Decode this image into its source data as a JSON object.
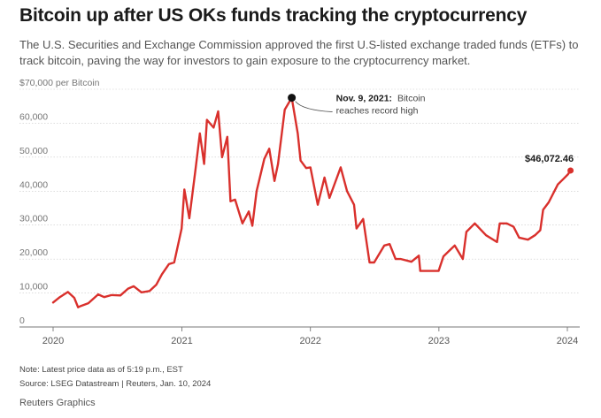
{
  "header": {
    "title": "Bitcoin up after US OKs funds tracking the cryptocurrency",
    "subtitle": "The U.S. Securities and Exchange Commission approved the first U.S-listed exchange traded funds (ETFs) to track bitcoin, paving the way for investors to gain exposure to the cryptocurrency market."
  },
  "footer": {
    "note": "Note: Latest price data as of 5:19 p.m., EST",
    "source": "Source: LSEG Datastream | Reuters, Jan. 10, 2024",
    "credit": "Reuters Graphics"
  },
  "chart_data": {
    "type": "line",
    "title": "Bitcoin up after US OKs funds tracking the cryptocurrency",
    "ylabel": "$70,000 per Bitcoin",
    "xlabel": "",
    "ylim": [
      0,
      70000
    ],
    "xlim": [
      "2020-01-01",
      "2024-01-10"
    ],
    "yticks": [
      0,
      10000,
      20000,
      30000,
      40000,
      50000,
      60000,
      70000
    ],
    "ytick_labels": [
      "0",
      "10,000",
      "20,000",
      "30,000",
      "40,000",
      "50,000",
      "60,000",
      "$70,000 per Bitcoin"
    ],
    "xticks": [
      "2020-01-01",
      "2021-01-01",
      "2022-01-01",
      "2023-01-01",
      "2024-01-01"
    ],
    "xtick_labels": [
      "2020",
      "2021",
      "2022",
      "2023",
      "2024"
    ],
    "grid": true,
    "line_color": "#d9302c",
    "series": [
      {
        "x": [
          "2020-01-01",
          "2020-01-20",
          "2020-02-12",
          "2020-03-01",
          "2020-03-12",
          "2020-03-20",
          "2020-04-10",
          "2020-05-08",
          "2020-05-25",
          "2020-06-15",
          "2020-07-10",
          "2020-08-01",
          "2020-08-17",
          "2020-09-08",
          "2020-10-01",
          "2020-10-20",
          "2020-11-05",
          "2020-11-25",
          "2020-12-10",
          "2020-12-31",
          "2021-01-08",
          "2021-01-22",
          "2021-02-08",
          "2021-02-21",
          "2021-03-05",
          "2021-03-13",
          "2021-04-01",
          "2021-04-14",
          "2021-04-25",
          "2021-05-10",
          "2021-05-19",
          "2021-06-01",
          "2021-06-22",
          "2021-07-10",
          "2021-07-20",
          "2021-08-01",
          "2021-08-23",
          "2021-09-06",
          "2021-09-21",
          "2021-10-01",
          "2021-10-20",
          "2021-11-09",
          "2021-11-26",
          "2021-12-04",
          "2021-12-20",
          "2022-01-01",
          "2022-01-22",
          "2022-02-10",
          "2022-02-24",
          "2022-03-28",
          "2022-04-15",
          "2022-05-05",
          "2022-05-12",
          "2022-05-31",
          "2022-06-18",
          "2022-07-01",
          "2022-07-30",
          "2022-08-14",
          "2022-08-31",
          "2022-09-15",
          "2022-10-15",
          "2022-11-05",
          "2022-11-09",
          "2022-11-25",
          "2022-12-31",
          "2023-01-14",
          "2023-02-15",
          "2023-03-10",
          "2023-03-20",
          "2023-04-13",
          "2023-05-15",
          "2023-06-15",
          "2023-06-23",
          "2023-07-13",
          "2023-08-01",
          "2023-08-17",
          "2023-09-11",
          "2023-10-01",
          "2023-10-16",
          "2023-10-24",
          "2023-11-09",
          "2023-12-05",
          "2023-12-20",
          "2024-01-03",
          "2024-01-10"
        ],
        "y": [
          7200,
          8800,
          10300,
          8600,
          5800,
          6200,
          7000,
          9600,
          8800,
          9400,
          9300,
          11300,
          12000,
          10200,
          10600,
          12400,
          15500,
          18500,
          19000,
          29000,
          40500,
          32000,
          46000,
          57000,
          48000,
          61000,
          58700,
          63500,
          50000,
          56000,
          37000,
          37500,
          30500,
          34000,
          29800,
          40000,
          49500,
          52500,
          43000,
          48000,
          64000,
          67500,
          57000,
          49000,
          46800,
          47000,
          36000,
          44000,
          38000,
          47000,
          40000,
          36000,
          29000,
          31800,
          19000,
          19000,
          24000,
          24400,
          20000,
          20000,
          19200,
          21000,
          16500,
          16500,
          16500,
          20800,
          24000,
          20000,
          28000,
          30500,
          27000,
          25000,
          30500,
          30500,
          29500,
          26300,
          25700,
          27000,
          28500,
          34500,
          36700,
          42000,
          43500,
          45000,
          46072.46
        ]
      }
    ],
    "annotations": [
      {
        "date_label": "Nov. 9, 2021:",
        "text": "Bitcoin",
        "text2": "reaches record high"
      },
      {
        "text": "$46,072.46"
      }
    ]
  }
}
